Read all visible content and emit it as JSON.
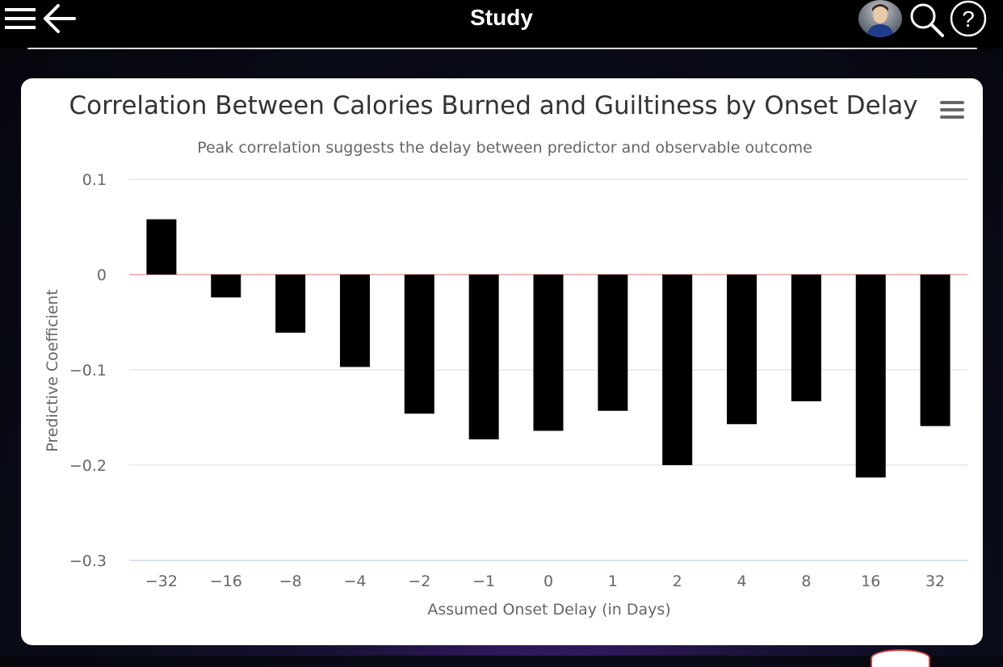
{
  "header": {
    "title": "Study",
    "icons": [
      "menu-icon",
      "back-arrow-icon",
      "avatar",
      "search-icon",
      "help-icon"
    ],
    "help_glyph": "?"
  },
  "chart_data": {
    "type": "bar",
    "title": "Correlation Between Calories Burned and Guiltiness by Onset Delay",
    "subtitle": "Peak correlation suggests the delay between predictor and observable outcome",
    "xlabel": "Assumed Onset Delay (in Days)",
    "ylabel": "Predictive Coefficient",
    "categories": [
      "−32",
      "−16",
      "−8",
      "−4",
      "−2",
      "−1",
      "0",
      "1",
      "2",
      "4",
      "8",
      "16",
      "32"
    ],
    "values": [
      0.058,
      -0.024,
      -0.061,
      -0.097,
      -0.146,
      -0.173,
      -0.164,
      -0.143,
      -0.2,
      -0.157,
      -0.133,
      -0.213,
      -0.159
    ],
    "ylim": [
      -0.3,
      0.1
    ],
    "yticks": [
      0.1,
      0,
      -0.1,
      -0.2,
      -0.3
    ],
    "ytick_labels": [
      "0.1",
      "0",
      "−0.1",
      "−0.2",
      "−0.3"
    ],
    "bar_color": "#000000",
    "zero_line_color": "#f2b8b8",
    "grid": true
  }
}
